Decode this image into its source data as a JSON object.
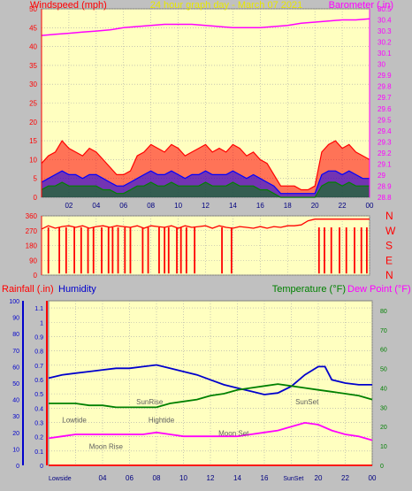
{
  "colors": {
    "page_bg": "#c0c0c0",
    "plot_bg": "#ffffc0",
    "grid": "#a8a8a8",
    "axis_red": "#ff0000",
    "wind_gust": "#ff0000",
    "wind_avg": "#0000ff",
    "wind_min": "#008000",
    "barometer": "#ff00ff",
    "direction": "#ff0000",
    "humidity": "#0000cc",
    "temperature": "#008000",
    "dew_point": "#ff00ff",
    "rainfall": "#ff0000",
    "astro_text": "#606060",
    "title": "#e8e800"
  },
  "chart_data": [
    {
      "type": "line",
      "title": "24 hour graph day - March 07 2021",
      "ylabel_left": "Windspeed (mph)",
      "ylabel_right": "Barometer (.in)",
      "x_ticks": [
        "02",
        "04",
        "06",
        "08",
        "10",
        "12",
        "14",
        "16",
        "18",
        "20",
        "22",
        "00"
      ],
      "x_hours": [
        0,
        24
      ],
      "ylim_left": [
        0,
        50
      ],
      "yticks_left": [
        "0",
        "5",
        "10",
        "15",
        "20",
        "25",
        "30",
        "35",
        "40",
        "45",
        "50"
      ],
      "ylim_right": [
        28.8,
        30.5
      ],
      "yticks_right": [
        "28.8",
        "28.9",
        "29",
        "29.1",
        "29.2",
        "29.3",
        "29.4",
        "29.5",
        "29.6",
        "29.7",
        "29.8",
        "29.9",
        "30",
        "30.1",
        "30.2",
        "30.3",
        "30.4",
        "30.5"
      ],
      "grid": true,
      "series": [
        {
          "name": "Windspeed",
          "axis": "left",
          "style": "bars-gust",
          "x": [
            0,
            0.5,
            1,
            1.5,
            2,
            2.5,
            3,
            3.5,
            4,
            4.5,
            5,
            5.5,
            6,
            6.5,
            7,
            7.5,
            8,
            8.5,
            9,
            9.5,
            10,
            10.5,
            11,
            11.5,
            12,
            12.5,
            13,
            13.5,
            14,
            14.5,
            15,
            15.5,
            16,
            16.5,
            17,
            17.5,
            18,
            18.5,
            19,
            19.5,
            20,
            20.5,
            21,
            21.5,
            22,
            22.5,
            23,
            23.5,
            24
          ],
          "values": [
            9,
            11,
            12,
            15,
            13,
            12,
            11,
            13,
            12,
            10,
            8,
            6,
            6,
            7,
            11,
            12,
            14,
            13,
            12,
            14,
            13,
            11,
            12,
            13,
            14,
            12,
            13,
            12,
            14,
            13,
            11,
            12,
            10,
            9,
            6,
            3,
            3,
            3,
            2,
            2,
            3,
            12,
            14,
            15,
            13,
            14,
            12,
            11,
            10
          ]
        },
        {
          "name": "Wind average",
          "axis": "left",
          "style": "bars-avg",
          "x": [
            0,
            0.5,
            1,
            1.5,
            2,
            2.5,
            3,
            3.5,
            4,
            4.5,
            5,
            5.5,
            6,
            6.5,
            7,
            7.5,
            8,
            8.5,
            9,
            9.5,
            10,
            10.5,
            11,
            11.5,
            12,
            12.5,
            13,
            13.5,
            14,
            14.5,
            15,
            15.5,
            16,
            16.5,
            17,
            17.5,
            18,
            18.5,
            19,
            19.5,
            20,
            20.5,
            21,
            21.5,
            22,
            22.5,
            23,
            23.5,
            24
          ],
          "values": [
            4,
            5,
            6,
            7,
            6,
            6,
            5,
            6,
            6,
            5,
            4,
            3,
            3,
            4,
            5,
            6,
            7,
            6,
            6,
            7,
            6,
            5,
            6,
            6,
            7,
            6,
            6,
            6,
            7,
            6,
            5,
            6,
            5,
            4,
            3,
            1,
            1,
            1,
            1,
            1,
            1,
            6,
            7,
            7,
            6,
            7,
            6,
            5,
            5
          ]
        },
        {
          "name": "Wind minimum",
          "axis": "left",
          "style": "bars-min",
          "x": [
            0,
            0.5,
            1,
            1.5,
            2,
            2.5,
            3,
            3.5,
            4,
            4.5,
            5,
            5.5,
            6,
            6.5,
            7,
            7.5,
            8,
            8.5,
            9,
            9.5,
            10,
            10.5,
            11,
            11.5,
            12,
            12.5,
            13,
            13.5,
            14,
            14.5,
            15,
            15.5,
            16,
            16.5,
            17,
            17.5,
            18,
            18.5,
            19,
            19.5,
            20,
            20.5,
            21,
            21.5,
            22,
            22.5,
            23,
            23.5,
            24
          ],
          "values": [
            2,
            3,
            3,
            4,
            3,
            3,
            3,
            3,
            3,
            2,
            2,
            1,
            1,
            2,
            3,
            3,
            4,
            3,
            3,
            4,
            3,
            3,
            3,
            3,
            4,
            3,
            3,
            3,
            4,
            3,
            3,
            3,
            2,
            2,
            1,
            0,
            0,
            0,
            0,
            0,
            0,
            3,
            4,
            4,
            3,
            4,
            3,
            3,
            3
          ]
        },
        {
          "name": "Barometer",
          "axis": "right",
          "x": [
            0,
            1,
            2,
            3,
            4,
            5,
            6,
            7,
            8,
            9,
            10,
            11,
            12,
            13,
            14,
            15,
            16,
            17,
            18,
            19,
            20,
            21,
            22,
            23,
            24
          ],
          "values": [
            30.26,
            30.27,
            30.28,
            30.29,
            30.3,
            30.31,
            30.33,
            30.34,
            30.35,
            30.36,
            30.36,
            30.36,
            30.35,
            30.34,
            30.33,
            30.33,
            30.33,
            30.34,
            30.35,
            30.37,
            30.38,
            30.39,
            30.4,
            30.4,
            30.41
          ]
        }
      ]
    },
    {
      "type": "line",
      "title": "",
      "ylabel_right": "N W S E N",
      "right_letters": [
        "N",
        "W",
        "S",
        "E",
        "N"
      ],
      "x_ticks": [
        "02",
        "04",
        "06",
        "08",
        "10",
        "12",
        "14",
        "16",
        "18",
        "20",
        "22",
        "00"
      ],
      "ylim": [
        0,
        360
      ],
      "yticks_left": [
        "0",
        "90",
        "180",
        "270",
        "360"
      ],
      "grid": true,
      "series": [
        {
          "name": "Wind direction",
          "style": "spiky",
          "x": [
            0,
            0.5,
            1,
            1.5,
            2,
            2.5,
            3,
            3.5,
            4,
            4.5,
            5,
            5.5,
            6,
            6.5,
            7,
            7.5,
            8,
            8.5,
            9,
            9.5,
            10,
            10.5,
            11,
            11.5,
            12,
            12.5,
            13,
            13.5,
            14,
            14.5,
            15,
            15.5,
            16,
            16.5,
            17,
            17.5,
            18,
            18.5,
            19,
            19.5,
            20,
            20.5,
            21,
            21.5,
            22,
            22.5,
            23,
            23.5,
            24
          ],
          "values": [
            280,
            300,
            285,
            295,
            300,
            290,
            300,
            285,
            295,
            300,
            290,
            300,
            295,
            290,
            300,
            285,
            300,
            295,
            290,
            300,
            285,
            300,
            290,
            295,
            300,
            285,
            300,
            290,
            285,
            295,
            290,
            285,
            295,
            285,
            295,
            290,
            300,
            300,
            305,
            330,
            340,
            340,
            340,
            340,
            340,
            340,
            340,
            340,
            340
          ],
          "dips": [
            0.5,
            1.3,
            1.8,
            2.4,
            2.9,
            3.4,
            3.8,
            4.4,
            4.9,
            5.2,
            5.6,
            6.1,
            6.5,
            7.4,
            7.8,
            8.6,
            9.0,
            9.3,
            9.9,
            10.2,
            10.6,
            11.2,
            13.2,
            13.9,
            20.3,
            20.7,
            21.2,
            21.8,
            22.3,
            22.9,
            23.4,
            23.8
          ],
          "dip_value": 10
        }
      ]
    },
    {
      "type": "line",
      "title": "",
      "legend_left": [
        "Rainfall (.in)",
        "Humidity"
      ],
      "legend_right": [
        "Temperature (°F)",
        "Dew Point (°F)"
      ],
      "x_ticks": [
        "02",
        "04",
        "06",
        "08",
        "10",
        "12",
        "14",
        "16",
        "18",
        "20",
        "22",
        "00"
      ],
      "ylim_humidity": [
        0,
        100
      ],
      "yticks_humidity": [
        "0",
        "10",
        "20",
        "30",
        "40",
        "50",
        "60",
        "70",
        "80",
        "90",
        "100"
      ],
      "ylim_rain": [
        0,
        1.15
      ],
      "yticks_rain": [
        "0",
        "0.1",
        "0.2",
        "0.3",
        "0.4",
        "0.5",
        "0.6",
        "0.7",
        "0.8",
        "0.9",
        "1",
        "1.1"
      ],
      "ylim_temp": [
        0,
        85
      ],
      "yticks_temp": [
        "0",
        "10",
        "20",
        "30",
        "40",
        "50",
        "60",
        "70",
        "80"
      ],
      "grid": true,
      "series": [
        {
          "name": "Humidity",
          "axis": "humidity",
          "x": [
            0,
            1,
            2,
            3,
            4,
            5,
            6,
            7,
            8,
            9,
            10,
            11,
            12,
            13,
            14,
            15,
            16,
            17,
            18,
            19,
            20,
            20.5,
            21,
            22,
            23,
            24
          ],
          "values": [
            53,
            55,
            56,
            57,
            58,
            59,
            59,
            60,
            61,
            59,
            57,
            55,
            52,
            49,
            47,
            45,
            43,
            44,
            48,
            55,
            60,
            60,
            52,
            50,
            49,
            49
          ]
        },
        {
          "name": "Temperature",
          "axis": "temp",
          "x": [
            0,
            1,
            2,
            3,
            4,
            5,
            6,
            7,
            8,
            9,
            10,
            11,
            12,
            13,
            14,
            15,
            16,
            17,
            18,
            19,
            20,
            21,
            22,
            23,
            24
          ],
          "values": [
            32,
            32,
            32,
            31,
            31,
            30,
            30,
            30,
            30,
            32,
            33,
            34,
            36,
            37,
            39,
            40,
            41,
            42,
            41,
            40,
            39,
            38,
            37,
            36,
            34
          ]
        },
        {
          "name": "Dew Point",
          "axis": "temp",
          "x": [
            0,
            1,
            2,
            3,
            4,
            5,
            6,
            7,
            8,
            9,
            10,
            11,
            12,
            13,
            14,
            15,
            16,
            17,
            18,
            19,
            20,
            21,
            22,
            23,
            24
          ],
          "values": [
            14,
            15,
            16,
            16,
            16,
            16,
            16,
            16,
            17,
            16,
            15,
            15,
            15,
            15,
            15,
            16,
            17,
            18,
            20,
            22,
            21,
            18,
            16,
            15,
            13
          ]
        },
        {
          "name": "Rainfall",
          "axis": "rain",
          "x": [
            0,
            24
          ],
          "values": [
            0,
            0
          ]
        }
      ],
      "annotations": [
        {
          "text": "Lowtide",
          "hour": 1.0,
          "level": 0.26
        },
        {
          "text": "Moon Rise",
          "hour": 3.0,
          "level": 0.1
        },
        {
          "text": "SunRise",
          "hour": 6.5,
          "level": 0.37
        },
        {
          "text": "Hightide",
          "hour": 7.4,
          "level": 0.26
        },
        {
          "text": "Moon Set",
          "hour": 12.6,
          "level": 0.18
        },
        {
          "text": "SunSet",
          "hour": 18.3,
          "level": 0.37
        }
      ],
      "bottom_events": [
        {
          "text": "Lowside",
          "hour": 0.0
        },
        {
          "text": "SunSet",
          "hour": 17.4
        }
      ]
    }
  ]
}
